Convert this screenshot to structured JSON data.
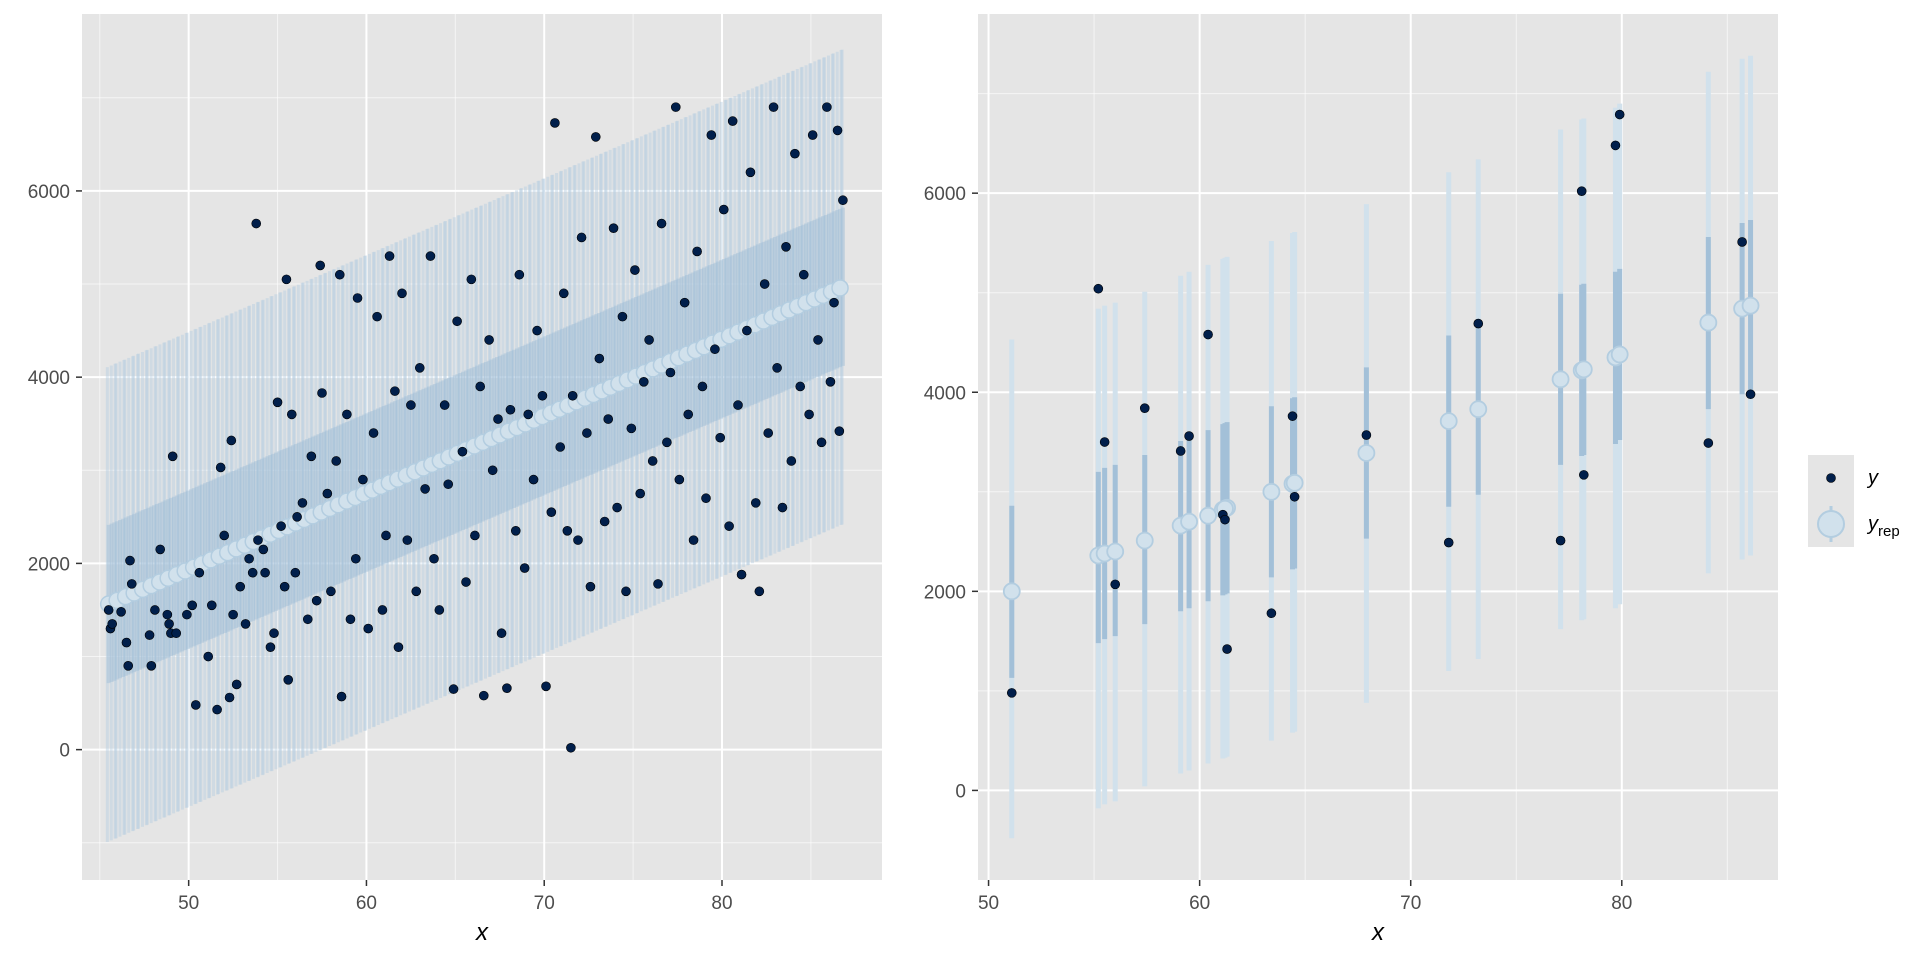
{
  "chart_data": [
    {
      "type": "scatter",
      "panel": "left",
      "description_hint": "observed y points with posterior predictive intervals (yrep) for every observation",
      "xlabel": "x",
      "ylabel": "",
      "xlim": [
        44.0,
        89.0
      ],
      "ylim": [
        -1400,
        7900
      ],
      "x_ticks": [
        50,
        60,
        70,
        80
      ],
      "y_ticks": [
        0,
        2000,
        4000,
        6000
      ],
      "grid": true,
      "yrep_model": {
        "intercept": -2190,
        "slope": 82.5,
        "inner_half_width": 850,
        "outer_half_width": 2550,
        "x_start": 45.5,
        "x_end": 86.8,
        "n_intervals": 260
      },
      "y_points": [
        [
          45.5,
          1500
        ],
        [
          45.6,
          1300
        ],
        [
          45.7,
          1350
        ],
        [
          46.2,
          1480
        ],
        [
          46.5,
          1150
        ],
        [
          46.6,
          900
        ],
        [
          46.7,
          2030
        ],
        [
          46.8,
          1780
        ],
        [
          47.8,
          1230
        ],
        [
          47.9,
          900
        ],
        [
          48.1,
          1500
        ],
        [
          48.4,
          2150
        ],
        [
          48.8,
          1450
        ],
        [
          48.9,
          1350
        ],
        [
          49.0,
          1250
        ],
        [
          49.1,
          3150
        ],
        [
          49.3,
          1250
        ],
        [
          49.9,
          1450
        ],
        [
          50.2,
          1550
        ],
        [
          50.4,
          480
        ],
        [
          50.6,
          1900
        ],
        [
          51.1,
          1000
        ],
        [
          51.3,
          1550
        ],
        [
          51.6,
          430
        ],
        [
          51.8,
          3030
        ],
        [
          52.0,
          2300
        ],
        [
          52.3,
          560
        ],
        [
          52.4,
          3320
        ],
        [
          52.5,
          1450
        ],
        [
          52.7,
          700
        ],
        [
          52.9,
          1750
        ],
        [
          53.2,
          1350
        ],
        [
          53.4,
          2050
        ],
        [
          53.6,
          1900
        ],
        [
          53.8,
          5650
        ],
        [
          53.9,
          2250
        ],
        [
          54.2,
          2150
        ],
        [
          54.3,
          1900
        ],
        [
          54.6,
          1100
        ],
        [
          54.8,
          1250
        ],
        [
          55.0,
          3730
        ],
        [
          55.2,
          2400
        ],
        [
          55.4,
          1750
        ],
        [
          55.5,
          5050
        ],
        [
          55.6,
          750
        ],
        [
          55.8,
          3600
        ],
        [
          56.0,
          1900
        ],
        [
          56.1,
          2500
        ],
        [
          56.4,
          2650
        ],
        [
          56.7,
          1400
        ],
        [
          56.9,
          3150
        ],
        [
          57.2,
          1600
        ],
        [
          57.4,
          5200
        ],
        [
          57.5,
          3830
        ],
        [
          57.8,
          2750
        ],
        [
          58.0,
          1700
        ],
        [
          58.3,
          3100
        ],
        [
          58.5,
          5100
        ],
        [
          58.6,
          570
        ],
        [
          58.9,
          3600
        ],
        [
          59.1,
          1400
        ],
        [
          59.4,
          2050
        ],
        [
          59.5,
          4850
        ],
        [
          59.8,
          2900
        ],
        [
          60.1,
          1300
        ],
        [
          60.4,
          3400
        ],
        [
          60.6,
          4650
        ],
        [
          60.9,
          1500
        ],
        [
          61.1,
          2300
        ],
        [
          61.3,
          5300
        ],
        [
          61.6,
          3850
        ],
        [
          61.8,
          1100
        ],
        [
          62.0,
          4900
        ],
        [
          62.3,
          2250
        ],
        [
          62.5,
          3700
        ],
        [
          62.8,
          1700
        ],
        [
          63.0,
          4100
        ],
        [
          63.3,
          2800
        ],
        [
          63.6,
          5300
        ],
        [
          63.8,
          2050
        ],
        [
          64.1,
          1500
        ],
        [
          64.4,
          3700
        ],
        [
          64.6,
          2850
        ],
        [
          64.9,
          650
        ],
        [
          65.1,
          4600
        ],
        [
          65.4,
          3200
        ],
        [
          65.6,
          1800
        ],
        [
          65.9,
          5050
        ],
        [
          66.1,
          2300
        ],
        [
          66.4,
          3900
        ],
        [
          66.6,
          580
        ],
        [
          66.9,
          4400
        ],
        [
          67.1,
          3000
        ],
        [
          67.4,
          3550
        ],
        [
          67.6,
          1250
        ],
        [
          67.9,
          660
        ],
        [
          68.1,
          3650
        ],
        [
          68.4,
          2350
        ],
        [
          68.6,
          5100
        ],
        [
          68.9,
          1950
        ],
        [
          69.1,
          3600
        ],
        [
          69.4,
          2900
        ],
        [
          69.6,
          4500
        ],
        [
          69.9,
          3800
        ],
        [
          70.1,
          680
        ],
        [
          70.4,
          2550
        ],
        [
          70.6,
          6730
        ],
        [
          70.9,
          3250
        ],
        [
          71.1,
          4900
        ],
        [
          71.3,
          2350
        ],
        [
          71.5,
          20
        ],
        [
          71.6,
          3800
        ],
        [
          71.9,
          2250
        ],
        [
          72.1,
          5500
        ],
        [
          72.4,
          3400
        ],
        [
          72.6,
          1750
        ],
        [
          72.9,
          6580
        ],
        [
          73.1,
          4200
        ],
        [
          73.4,
          2450
        ],
        [
          73.6,
          3550
        ],
        [
          73.9,
          5600
        ],
        [
          74.1,
          2600
        ],
        [
          74.4,
          4650
        ],
        [
          74.6,
          1700
        ],
        [
          74.9,
          3450
        ],
        [
          75.1,
          5150
        ],
        [
          75.4,
          2750
        ],
        [
          75.6,
          3950
        ],
        [
          75.9,
          4400
        ],
        [
          76.1,
          3100
        ],
        [
          76.4,
          1780
        ],
        [
          76.6,
          5650
        ],
        [
          76.9,
          3300
        ],
        [
          77.1,
          4050
        ],
        [
          77.4,
          6900
        ],
        [
          77.6,
          2900
        ],
        [
          77.9,
          4800
        ],
        [
          78.1,
          3600
        ],
        [
          78.4,
          2250
        ],
        [
          78.6,
          5350
        ],
        [
          78.9,
          3900
        ],
        [
          79.1,
          2700
        ],
        [
          79.4,
          6600
        ],
        [
          79.6,
          4300
        ],
        [
          79.9,
          3350
        ],
        [
          80.1,
          5800
        ],
        [
          80.4,
          2400
        ],
        [
          80.6,
          6750
        ],
        [
          80.9,
          3700
        ],
        [
          81.1,
          1880
        ],
        [
          81.4,
          4500
        ],
        [
          81.6,
          6200
        ],
        [
          81.9,
          2650
        ],
        [
          82.1,
          1700
        ],
        [
          82.4,
          5000
        ],
        [
          82.6,
          3400
        ],
        [
          82.9,
          6900
        ],
        [
          83.1,
          4100
        ],
        [
          83.4,
          2600
        ],
        [
          83.6,
          5400
        ],
        [
          83.9,
          3100
        ],
        [
          84.1,
          6400
        ],
        [
          84.4,
          3900
        ],
        [
          84.6,
          5100
        ],
        [
          84.9,
          3600
        ],
        [
          85.1,
          6600
        ],
        [
          85.4,
          4400
        ],
        [
          85.6,
          3300
        ],
        [
          85.9,
          6900
        ],
        [
          86.1,
          3950
        ],
        [
          86.3,
          4800
        ],
        [
          86.5,
          6650
        ],
        [
          86.6,
          3420
        ],
        [
          86.8,
          5900
        ]
      ]
    },
    {
      "type": "scatter",
      "panel": "right",
      "description_hint": "observed y points with 50%/90% posterior predictive intervals and medians (yrep) for a subset",
      "xlabel": "x",
      "ylabel": "",
      "xlim": [
        49.5,
        87.4
      ],
      "ylim": [
        -900,
        7800
      ],
      "x_ticks": [
        50,
        60,
        70,
        80
      ],
      "y_ticks": [
        0,
        2000,
        4000,
        6000
      ],
      "grid": true,
      "obs": [
        {
          "x": 51.1,
          "y": 980,
          "med": 2000,
          "lo50": 1130,
          "hi50": 2860,
          "lo90": -480,
          "hi90": 4530
        },
        {
          "x": 55.2,
          "y": 5040,
          "med": 2360,
          "lo50": 1480,
          "hi50": 3200,
          "lo90": -180,
          "hi90": 4840
        },
        {
          "x": 55.5,
          "y": 3500,
          "med": 2380,
          "lo50": 1520,
          "hi50": 3240,
          "lo90": -140,
          "hi90": 4870
        },
        {
          "x": 56.0,
          "y": 2070,
          "med": 2400,
          "lo50": 1550,
          "hi50": 3270,
          "lo90": -110,
          "hi90": 4900
        },
        {
          "x": 57.4,
          "y": 3840,
          "med": 2510,
          "lo50": 1670,
          "hi50": 3370,
          "lo90": 40,
          "hi90": 5010
        },
        {
          "x": 59.1,
          "y": 3410,
          "med": 2660,
          "lo50": 1800,
          "hi50": 3510,
          "lo90": 170,
          "hi90": 5170
        },
        {
          "x": 59.5,
          "y": 3560,
          "med": 2700,
          "lo50": 1830,
          "hi50": 3550,
          "lo90": 200,
          "hi90": 5210
        },
        {
          "x": 60.4,
          "y": 4580,
          "med": 2760,
          "lo50": 1900,
          "hi50": 3620,
          "lo90": 270,
          "hi90": 5280
        },
        {
          "x": 61.1,
          "y": 2770,
          "med": 2820,
          "lo50": 1960,
          "hi50": 3680,
          "lo90": 320,
          "hi90": 5340
        },
        {
          "x": 61.3,
          "y": 1420,
          "med": 2840,
          "lo50": 1980,
          "hi50": 3700,
          "lo90": 340,
          "hi90": 5360
        },
        {
          "x": 61.2,
          "y": 2720,
          "med": 2830,
          "lo50": 1970,
          "hi50": 3690,
          "lo90": 330,
          "hi90": 5350
        },
        {
          "x": 63.4,
          "y": 1780,
          "med": 3000,
          "lo50": 2140,
          "hi50": 3860,
          "lo90": 500,
          "hi90": 5520
        },
        {
          "x": 64.4,
          "y": 3760,
          "med": 3080,
          "lo50": 2220,
          "hi50": 3940,
          "lo90": 580,
          "hi90": 5600
        },
        {
          "x": 64.5,
          "y": 2950,
          "med": 3090,
          "lo50": 2230,
          "hi50": 3950,
          "lo90": 590,
          "hi90": 5610
        },
        {
          "x": 67.9,
          "y": 3570,
          "med": 3390,
          "lo50": 2530,
          "hi50": 4250,
          "lo90": 880,
          "hi90": 5890
        },
        {
          "x": 71.8,
          "y": 2490,
          "med": 3710,
          "lo50": 2850,
          "hi50": 4570,
          "lo90": 1200,
          "hi90": 6210
        },
        {
          "x": 73.2,
          "y": 4690,
          "med": 3830,
          "lo50": 2970,
          "hi50": 4690,
          "lo90": 1320,
          "hi90": 6340
        },
        {
          "x": 77.1,
          "y": 2510,
          "med": 4130,
          "lo50": 3270,
          "hi50": 4990,
          "lo90": 1620,
          "hi90": 6640
        },
        {
          "x": 78.1,
          "y": 6020,
          "med": 4220,
          "lo50": 3360,
          "hi50": 5080,
          "lo90": 1710,
          "hi90": 6740
        },
        {
          "x": 78.2,
          "y": 3170,
          "med": 4230,
          "lo50": 3370,
          "hi50": 5090,
          "lo90": 1720,
          "hi90": 6750
        },
        {
          "x": 79.7,
          "y": 6480,
          "med": 4350,
          "lo50": 3480,
          "hi50": 5210,
          "lo90": 1830,
          "hi90": 6860
        },
        {
          "x": 79.9,
          "y": 6790,
          "med": 4380,
          "lo50": 3520,
          "hi50": 5240,
          "lo90": 1870,
          "hi90": 6900
        },
        {
          "x": 84.1,
          "y": 3490,
          "med": 4700,
          "lo50": 3830,
          "hi50": 5560,
          "lo90": 2180,
          "hi90": 7220
        },
        {
          "x": 85.7,
          "y": 5510,
          "med": 4840,
          "lo50": 3980,
          "hi50": 5700,
          "lo90": 2320,
          "hi90": 7350
        },
        {
          "x": 86.1,
          "y": 3980,
          "med": 4870,
          "lo50": 4010,
          "hi50": 5730,
          "lo90": 2360,
          "hi90": 7380
        }
      ]
    }
  ],
  "legend": {
    "y_label": "y",
    "yrep_label": "y",
    "yrep_subscript": "rep"
  },
  "colors": {
    "panel_bg": "#e5e5e5",
    "grid_major": "#ffffff",
    "point_dark": "#011f4b",
    "yrep_light": "#d1e1ec",
    "yrep_mid": "#b3cde0",
    "yrep_dark": "#a3c0d8"
  }
}
